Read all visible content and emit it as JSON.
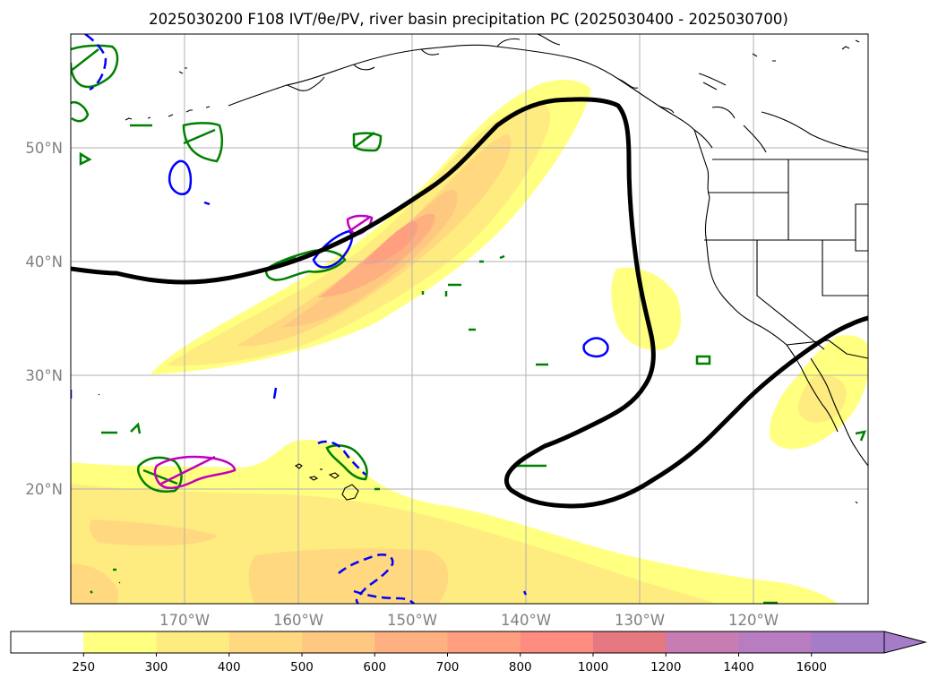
{
  "title": "2025030200 F108 IVT/θe/PV, river basin precipitation PC (2025030400 - 2025030700)",
  "map": {
    "lat_labels": [
      "50°N",
      "40°N",
      "30°N",
      "20°N"
    ],
    "lon_labels": [
      "170°W",
      "160°W",
      "150°W",
      "140°W",
      "130°W",
      "120°W"
    ],
    "extent": {
      "lon_min": -180,
      "lon_max": -110,
      "lat_min": 10,
      "lat_max": 60
    },
    "gridlines": true
  },
  "colorbar": {
    "levels": [
      "250",
      "300",
      "400",
      "500",
      "600",
      "700",
      "800",
      "1000",
      "1200",
      "1400",
      "1600"
    ],
    "colors": [
      "#ffffff",
      "#ffff80",
      "#ffec80",
      "#ffd880",
      "#ffc880",
      "#ffb080",
      "#ff9f80",
      "#ff8c80",
      "#e57880",
      "#c87cb4",
      "#b87cc0",
      "#a47cc8"
    ],
    "extend": "max"
  },
  "chart_data": {
    "type": "map",
    "contour_levels": [
      250,
      300,
      400,
      500,
      600,
      700,
      800,
      1000,
      1200,
      1400,
      1600
    ],
    "series": [
      {
        "name": "",
        "color": "#000000",
        "style": "solid-thick"
      },
      {
        "name": "",
        "color": "#008000",
        "style": "solid"
      },
      {
        "name": "",
        "color": "#0000ff",
        "style": "solid/dashed"
      },
      {
        "name": "",
        "color": "#c000c0",
        "style": "solid"
      }
    ]
  }
}
